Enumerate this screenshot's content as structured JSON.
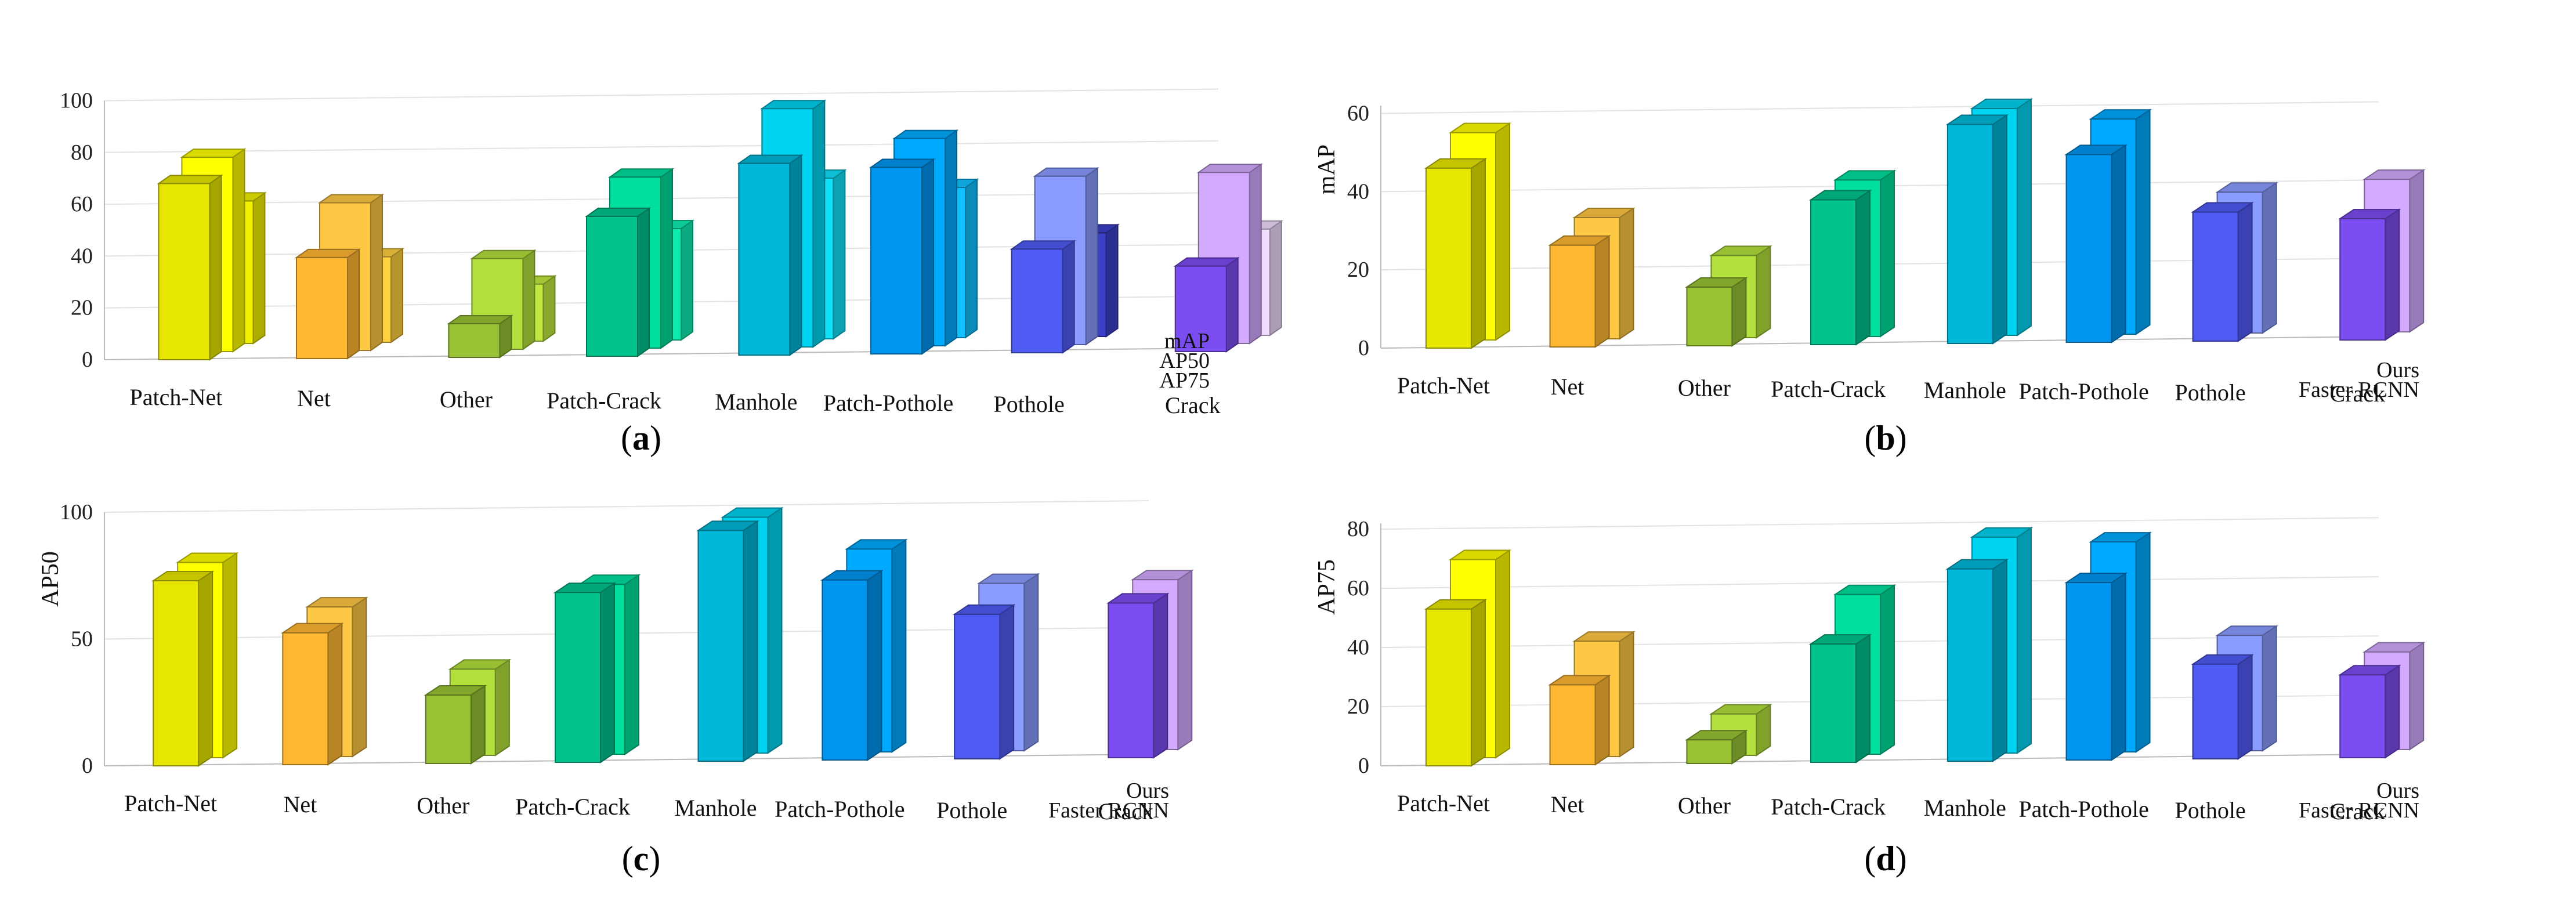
{
  "chart_data": [
    {
      "id": "a",
      "type": "bar",
      "panel_label": "a",
      "categories": [
        "Patch-Net",
        "Net",
        "Other",
        "Patch-Crack",
        "Manhole",
        "Patch-Pothole",
        "Pothole",
        "Crack"
      ],
      "series": [
        {
          "name": "AP75",
          "values": [
            68,
            39,
            13,
            54,
            74,
            72,
            40,
            33
          ]
        },
        {
          "name": "AP50",
          "values": [
            75,
            57,
            35,
            66,
            92,
            80,
            65,
            66
          ]
        },
        {
          "name": "mAP",
          "values": [
            55,
            33,
            22,
            43,
            62,
            58,
            40,
            41
          ]
        }
      ],
      "ylabel": "",
      "yticks": [
        0,
        20,
        40,
        60,
        80,
        100
      ],
      "ylim": [
        0,
        100
      ],
      "legend": [
        "mAP",
        "AP50",
        "AP75"
      ]
    },
    {
      "id": "b",
      "type": "bar",
      "panel_label": "b",
      "categories": [
        "Patch-Net",
        "Net",
        "Other",
        "Patch-Crack",
        "Manhole",
        "Patch-Pothole",
        "Pothole",
        "Crack"
      ],
      "series": [
        {
          "name": "Faster RCNN",
          "values": [
            46,
            26,
            15,
            37,
            56,
            48,
            33,
            31
          ]
        },
        {
          "name": "Ours",
          "values": [
            53,
            31,
            21,
            40,
            58,
            55,
            36,
            39
          ]
        }
      ],
      "ylabel": "mAP",
      "yticks": [
        0,
        20,
        40,
        60
      ],
      "ylim": [
        0,
        62
      ],
      "legend": [
        "Ours",
        "Faster RCNN"
      ]
    },
    {
      "id": "c",
      "type": "bar",
      "panel_label": "c",
      "categories": [
        "Patch-Net",
        "Net",
        "Other",
        "Patch-Crack",
        "Manhole",
        "Patch-Pothole",
        "Pothole",
        "Crack"
      ],
      "series": [
        {
          "name": "Faster RCNN",
          "values": [
            73,
            52,
            27,
            67,
            91,
            71,
            57,
            61
          ]
        },
        {
          "name": "Ours",
          "values": [
            77,
            59,
            34,
            67,
            93,
            80,
            66,
            67
          ]
        }
      ],
      "ylabel": "AP50",
      "yticks": [
        0,
        50,
        100
      ],
      "ylim": [
        0,
        100
      ],
      "legend": [
        "Ours",
        "Faster RCNN"
      ]
    },
    {
      "id": "d",
      "type": "bar",
      "panel_label": "d",
      "categories": [
        "Patch-Net",
        "Net",
        "Other",
        "Patch-Crack",
        "Manhole",
        "Patch-Pothole",
        "Pothole",
        "Crack"
      ],
      "series": [
        {
          "name": "Faster RCNN",
          "values": [
            53,
            27,
            8,
            40,
            65,
            60,
            32,
            28
          ]
        },
        {
          "name": "Ours",
          "values": [
            67,
            39,
            14,
            54,
            73,
            71,
            39,
            33
          ]
        }
      ],
      "ylabel": "AP75",
      "yticks": [
        0,
        20,
        40,
        60,
        80
      ],
      "ylim": [
        0,
        82
      ],
      "legend": [
        "Ours",
        "Faster RCNN"
      ]
    }
  ],
  "palette": [
    "#e6e600",
    "#ffb732",
    "#99c234",
    "#00c48c",
    "#00b8d9",
    "#0096f0",
    "#4f5bf5",
    "#7b4df0"
  ],
  "palette_back": [
    "#ffff00",
    "#ffc844",
    "#b3e03c",
    "#00e09c",
    "#00d4f0",
    "#00aaff",
    "#8a9cff",
    "#d4aaff"
  ],
  "palette_third": [
    "#f0f000",
    "#ffd040",
    "#c0e840",
    "#10ecb0",
    "#10e0f8",
    "#10c0ff",
    "#3a40c8",
    "#f0dcff"
  ]
}
